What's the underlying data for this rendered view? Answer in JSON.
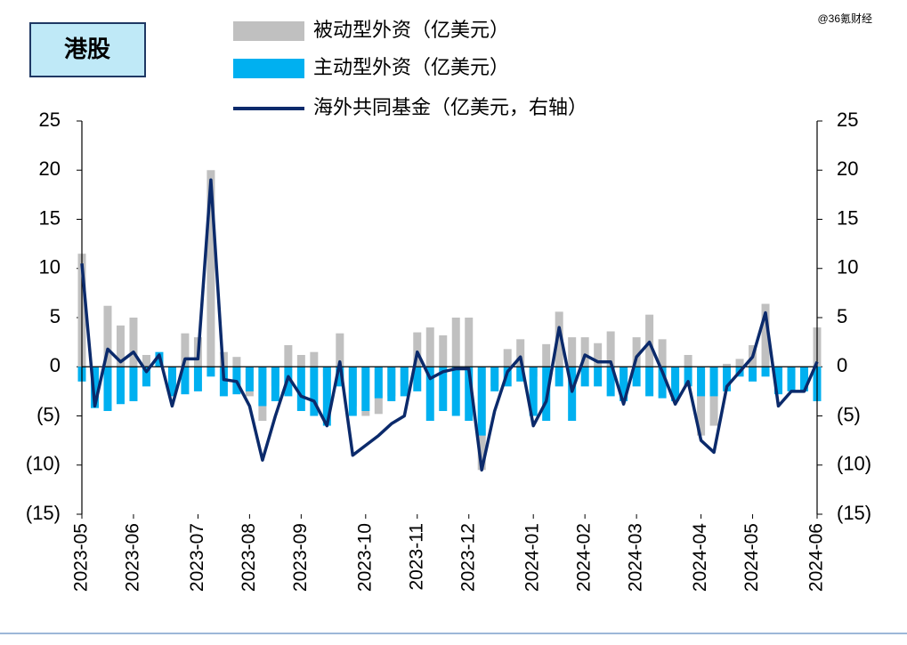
{
  "chart_data": {
    "type": "bar",
    "title": "港股",
    "watermark": "@36氪财经",
    "categories": [
      "2023-05",
      null,
      null,
      null,
      "2023-06",
      null,
      null,
      null,
      null,
      "2023-07",
      null,
      null,
      null,
      "2023-08",
      null,
      null,
      null,
      "2023-09",
      null,
      null,
      null,
      null,
      "2023-10",
      null,
      null,
      null,
      "2023-11",
      null,
      null,
      null,
      "2023-12",
      null,
      null,
      null,
      null,
      "2024-01",
      null,
      null,
      null,
      "2024-02",
      null,
      null,
      null,
      "2024-03",
      null,
      null,
      null,
      null,
      "2024-04",
      null,
      null,
      null,
      "2024-05",
      null,
      null,
      null,
      null,
      "2024-06"
    ],
    "series": [
      {
        "name": "被动型外资（亿美元）",
        "type": "bar",
        "color": "#c0c0c0",
        "values": [
          11.5,
          -3.5,
          6.2,
          4.2,
          5,
          1.2,
          1,
          -2,
          3.4,
          3,
          20,
          1.5,
          1,
          -3,
          -5.5,
          -2,
          2.2,
          1.2,
          1.5,
          -1,
          3.4,
          -4,
          -5,
          -4.8,
          -3,
          -2,
          3.5,
          4,
          3.2,
          5,
          5,
          -10.5,
          -2,
          1.8,
          2.8,
          -1,
          2.3,
          5.6,
          3,
          3,
          2.4,
          3.6,
          -1,
          3,
          5.3,
          2.8,
          -2,
          1.2,
          -7,
          -6,
          0.3,
          0.8,
          2.2,
          6.4,
          -1,
          -1.5,
          -1,
          4
        ]
      },
      {
        "name": "主动型外资（亿美元）",
        "type": "bar",
        "color": "#00b0f0",
        "values": [
          -1.5,
          -4.2,
          -4.5,
          -3.8,
          -3.5,
          -2,
          1.5,
          -3,
          -2.8,
          -2.5,
          -1,
          -3,
          -2.8,
          -2.5,
          -4,
          -3.5,
          -3,
          -4.5,
          -5,
          -6,
          -2,
          -5,
          -4.5,
          -3.2,
          -3.5,
          -3,
          -2.5,
          -5.5,
          -4.5,
          -5,
          -5.5,
          -7,
          -2.5,
          -2,
          -1.5,
          -5,
          -5.5,
          -2,
          -5.5,
          -2,
          -2,
          -3,
          -3.5,
          -2,
          -3,
          -3.2,
          -3.5,
          -2,
          -3,
          -3,
          -2.5,
          -1,
          -1.5,
          -1,
          -2.8,
          -2.5,
          -2.5,
          -3.5
        ]
      },
      {
        "name": "海外共同基金（亿美元，右轴）",
        "type": "line",
        "axis": "y2",
        "color": "#0b2a6b",
        "values": [
          10.5,
          -4,
          1.8,
          0.5,
          1.5,
          -0.5,
          1.2,
          -4,
          0.8,
          0.8,
          19,
          -1.3,
          -1.5,
          -4,
          -9.5,
          -5,
          -1,
          -3,
          -3.5,
          -6,
          0.5,
          -9,
          -8,
          -7,
          -5.8,
          -5,
          1.5,
          -1.2,
          -0.5,
          -0.2,
          -0.2,
          -10.5,
          -4.5,
          -0.5,
          1,
          -6,
          -3.5,
          4,
          -2.5,
          1.2,
          0.5,
          0.5,
          -3.8,
          1,
          2.5,
          -0.5,
          -3.8,
          -1.5,
          -7.5,
          -8.7,
          -2,
          -0.5,
          1,
          5.5,
          -4,
          -2.5,
          -2.5,
          0.5
        ]
      }
    ],
    "ylim": [
      -15,
      25
    ],
    "yticks": [
      {
        "value": -15,
        "label": "(15)"
      },
      {
        "value": -10,
        "label": "(10)"
      },
      {
        "value": -5,
        "label": "(5)"
      },
      0,
      5,
      10,
      15,
      20,
      25
    ],
    "y2lim": [
      -15,
      25
    ],
    "y2ticks": [
      {
        "value": -15,
        "label": "(15)"
      },
      {
        "value": -10,
        "label": "(10)"
      },
      {
        "value": -5,
        "label": "(5)"
      },
      0,
      5,
      10,
      15,
      20,
      25
    ]
  }
}
